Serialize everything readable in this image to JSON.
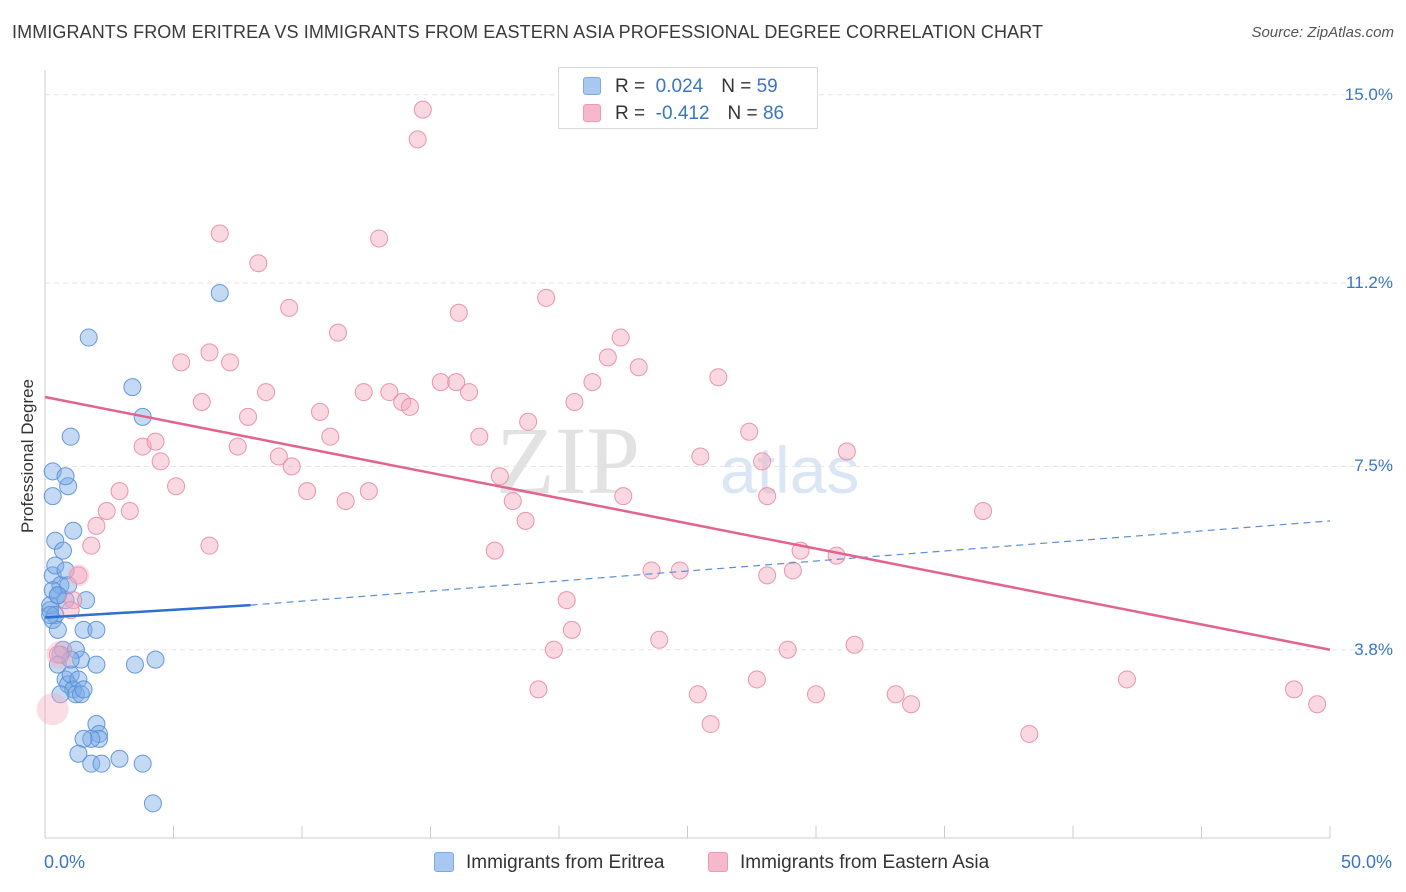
{
  "title": "IMMIGRANTS FROM ERITREA VS IMMIGRANTS FROM EASTERN ASIA PROFESSIONAL DEGREE CORRELATION CHART",
  "source": "Source: ZipAtlas.com",
  "legend_top": [
    {
      "r_label": "R =",
      "r_value": "0.024",
      "n_label": "N =",
      "n_value": "59",
      "color": "#a9c8f0"
    },
    {
      "r_label": "R =",
      "r_value": "-0.412",
      "n_label": "N =",
      "n_value": "86",
      "color": "#f6b8cb"
    }
  ],
  "legend_bottom": [
    {
      "label": "Immigrants from Eritrea",
      "color": "#a9c8f0"
    },
    {
      "label": "Immigrants from Eastern Asia",
      "color": "#f6b8cb"
    }
  ],
  "watermark": {
    "part1": "ZIP",
    "part2": "atlas"
  },
  "chart_data": {
    "type": "scatter",
    "title": "IMMIGRANTS FROM ERITREA VS IMMIGRANTS FROM EASTERN ASIA PROFESSIONAL DEGREE CORRELATION CHART",
    "xlabel": "",
    "ylabel": "Professional Degree",
    "xlim": [
      0,
      50
    ],
    "ylim": [
      0,
      15.5
    ],
    "x_ticks": [
      "0.0%",
      "50.0%"
    ],
    "y_ticks": [
      {
        "value": 3.8,
        "label": "3.8%"
      },
      {
        "value": 7.5,
        "label": "7.5%"
      },
      {
        "value": 11.2,
        "label": "11.2%"
      },
      {
        "value": 15.0,
        "label": "15.0%"
      }
    ],
    "grid": true,
    "series": [
      {
        "name": "Immigrants from Eritrea",
        "color": "#7aaae6",
        "stroke": "#5a8fd6",
        "points": [
          [
            0.2,
            4.6
          ],
          [
            0.3,
            4.4
          ],
          [
            0.2,
            4.7
          ],
          [
            0.3,
            5.3
          ],
          [
            0.4,
            5.5
          ],
          [
            0.4,
            6.0
          ],
          [
            0.3,
            6.9
          ],
          [
            0.3,
            7.4
          ],
          [
            0.4,
            4.5
          ],
          [
            0.5,
            4.9
          ],
          [
            0.6,
            5.1
          ],
          [
            0.7,
            5.8
          ],
          [
            0.8,
            5.4
          ],
          [
            0.8,
            4.8
          ],
          [
            0.9,
            5.1
          ],
          [
            0.9,
            7.1
          ],
          [
            0.8,
            7.3
          ],
          [
            1.0,
            8.1
          ],
          [
            1.1,
            6.2
          ],
          [
            0.5,
            4.2
          ],
          [
            0.6,
            3.7
          ],
          [
            0.7,
            3.8
          ],
          [
            0.8,
            3.2
          ],
          [
            0.9,
            3.1
          ],
          [
            1.0,
            3.3
          ],
          [
            1.1,
            3.0
          ],
          [
            1.2,
            2.9
          ],
          [
            1.3,
            3.2
          ],
          [
            1.4,
            2.9
          ],
          [
            0.5,
            3.5
          ],
          [
            0.6,
            2.9
          ],
          [
            1.4,
            3.6
          ],
          [
            1.5,
            4.2
          ],
          [
            1.6,
            4.8
          ],
          [
            1.7,
            10.1
          ],
          [
            2.0,
            4.2
          ],
          [
            2.0,
            3.5
          ],
          [
            2.0,
            2.3
          ],
          [
            2.1,
            2.1
          ],
          [
            2.1,
            2.0
          ],
          [
            1.8,
            2.0
          ],
          [
            1.5,
            2.0
          ],
          [
            1.3,
            1.7
          ],
          [
            1.8,
            1.5
          ],
          [
            2.2,
            1.5
          ],
          [
            2.9,
            1.6
          ],
          [
            3.8,
            1.5
          ],
          [
            3.8,
            8.5
          ],
          [
            3.4,
            9.1
          ],
          [
            4.3,
            3.6
          ],
          [
            4.2,
            0.7
          ],
          [
            3.5,
            3.5
          ],
          [
            6.8,
            11.0
          ],
          [
            0.3,
            5.0
          ],
          [
            0.5,
            4.9
          ],
          [
            0.2,
            4.5
          ],
          [
            1.2,
            3.8
          ],
          [
            1.5,
            3.0
          ],
          [
            1.0,
            3.6
          ]
        ],
        "trend": {
          "x0": 0,
          "y0": 4.45,
          "x1": 8,
          "y1": 4.7,
          "x_dash_end": 50,
          "y_dash_end": 6.4
        }
      },
      {
        "name": "Immigrants from Eastern Asia",
        "color": "#f3a9bf",
        "stroke": "#e889a6",
        "points": [
          [
            14.7,
            14.7
          ],
          [
            14.5,
            14.1
          ],
          [
            6.8,
            12.2
          ],
          [
            8.3,
            11.6
          ],
          [
            13.0,
            12.1
          ],
          [
            9.5,
            10.7
          ],
          [
            11.4,
            10.2
          ],
          [
            16.1,
            10.6
          ],
          [
            19.5,
            10.9
          ],
          [
            22.4,
            10.1
          ],
          [
            5.3,
            9.6
          ],
          [
            6.4,
            9.8
          ],
          [
            7.2,
            9.6
          ],
          [
            21.9,
            9.7
          ],
          [
            23.1,
            9.5
          ],
          [
            26.2,
            9.3
          ],
          [
            15.4,
            9.2
          ],
          [
            16.0,
            9.2
          ],
          [
            21.3,
            9.2
          ],
          [
            8.6,
            9.0
          ],
          [
            12.4,
            9.0
          ],
          [
            13.4,
            9.0
          ],
          [
            16.5,
            9.0
          ],
          [
            20.6,
            8.8
          ],
          [
            13.9,
            8.8
          ],
          [
            14.2,
            8.7
          ],
          [
            6.1,
            8.8
          ],
          [
            7.9,
            8.5
          ],
          [
            10.7,
            8.6
          ],
          [
            18.8,
            8.4
          ],
          [
            27.4,
            8.2
          ],
          [
            11.1,
            8.1
          ],
          [
            16.9,
            8.1
          ],
          [
            3.8,
            7.9
          ],
          [
            4.3,
            8.0
          ],
          [
            7.5,
            7.9
          ],
          [
            9.1,
            7.7
          ],
          [
            31.2,
            7.8
          ],
          [
            4.5,
            7.6
          ],
          [
            9.6,
            7.5
          ],
          [
            17.7,
            7.3
          ],
          [
            25.5,
            7.7
          ],
          [
            27.9,
            7.6
          ],
          [
            5.1,
            7.1
          ],
          [
            10.2,
            7.0
          ],
          [
            12.6,
            7.0
          ],
          [
            2.9,
            7.0
          ],
          [
            11.7,
            6.8
          ],
          [
            18.2,
            6.8
          ],
          [
            22.5,
            6.9
          ],
          [
            28.1,
            6.9
          ],
          [
            36.5,
            6.6
          ],
          [
            2.0,
            6.3
          ],
          [
            2.4,
            6.6
          ],
          [
            3.3,
            6.6
          ],
          [
            1.8,
            5.9
          ],
          [
            6.4,
            5.9
          ],
          [
            17.5,
            5.8
          ],
          [
            18.7,
            6.4
          ],
          [
            29.4,
            5.8
          ],
          [
            30.8,
            5.7
          ],
          [
            23.6,
            5.4
          ],
          [
            24.7,
            5.4
          ],
          [
            29.1,
            5.4
          ],
          [
            28.1,
            5.3
          ],
          [
            1.3,
            5.3
          ],
          [
            1.1,
            4.8
          ],
          [
            20.3,
            4.8
          ],
          [
            1.0,
            4.6
          ],
          [
            20.5,
            4.2
          ],
          [
            19.8,
            3.8
          ],
          [
            23.9,
            4.0
          ],
          [
            28.9,
            3.8
          ],
          [
            31.5,
            3.9
          ],
          [
            0.5,
            3.7
          ],
          [
            27.7,
            3.2
          ],
          [
            42.1,
            3.2
          ],
          [
            19.2,
            3.0
          ],
          [
            25.4,
            2.9
          ],
          [
            30.0,
            2.9
          ],
          [
            33.1,
            2.9
          ],
          [
            33.7,
            2.7
          ],
          [
            48.6,
            3.0
          ],
          [
            49.5,
            2.7
          ],
          [
            25.9,
            2.3
          ],
          [
            38.3,
            2.1
          ]
        ],
        "trend": {
          "x0": 0,
          "y0": 8.9,
          "x1": 50,
          "y1": 3.8
        }
      }
    ]
  }
}
